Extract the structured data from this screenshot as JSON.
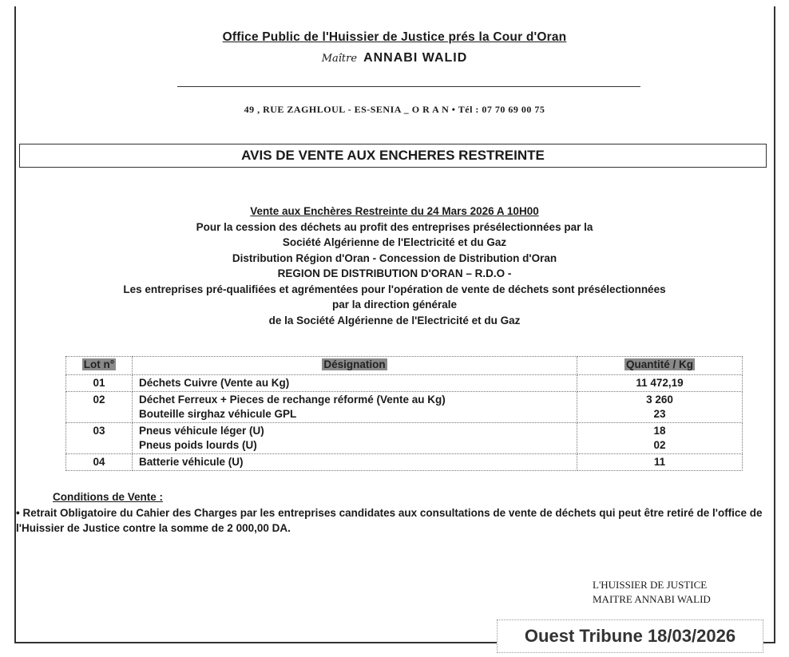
{
  "header": {
    "office": "Office Public de l'Huissier de Justice prés la Cour d'Oran",
    "maitre_prefix": "Maître",
    "maitre_name": "ANNABI WALID",
    "address": "49 , RUE ZAGHLOUL - ES-SENIA _ O R A N •  Tél : 07 70 69 00 75"
  },
  "title": "AVIS DE VENTE AUX ENCHERES RESTREINTE",
  "body": {
    "line1": "Vente aux Enchères Restreinte du  24 Mars  2026  A 10H00",
    "line2": "Pour la cession des déchets au profit des entreprises présélectionnées par la",
    "line3": "Société Algérienne de l'Electricité et du Gaz",
    "line4": "Distribution Région d'Oran - Concession de Distribution d'Oran",
    "line5": "REGION DE DISTRIBUTION D'ORAN – R.D.O -",
    "line6": "Les entreprises pré-qualifiées et agrémentées pour l'opération de vente de déchets sont présélectionnées",
    "line7": "par la direction générale",
    "line8": "de la Société Algérienne de l'Electricité et du Gaz"
  },
  "table": {
    "headers": [
      "Lot n°",
      "Désignation",
      "Quantité / Kg"
    ],
    "rows": [
      {
        "lot": "01",
        "items": [
          "Déchets Cuivre   (Vente au Kg)"
        ],
        "qty": [
          "11 472,19"
        ]
      },
      {
        "lot": "02",
        "items": [
          "Déchet Ferreux + Pieces de rechange réformé (Vente au Kg)",
          "Bouteille sirghaz véhicule GPL"
        ],
        "qty": [
          "3 260",
          "23"
        ]
      },
      {
        "lot": "03",
        "items": [
          "Pneus véhicule léger (U)",
          "Pneus poids  lourds  (U)"
        ],
        "qty": [
          "18",
          "02"
        ]
      },
      {
        "lot": "04",
        "items": [
          "Batterie véhicule (U)"
        ],
        "qty": [
          "11"
        ]
      }
    ]
  },
  "conditions": {
    "heading": "Conditions de Vente :",
    "text": "• Retrait Obligatoire du Cahier des Charges par les entreprises candidates aux  consultations de vente de déchets  qui peut être retiré de l'office de l'Huissier de Justice contre la somme de 2 000,00 DA."
  },
  "signature": {
    "line1": "L'HUISSIER DE JUSTICE",
    "line2": "MAITRE ANNABI WALID"
  },
  "publication": "Ouest Tribune 18/03/2026"
}
